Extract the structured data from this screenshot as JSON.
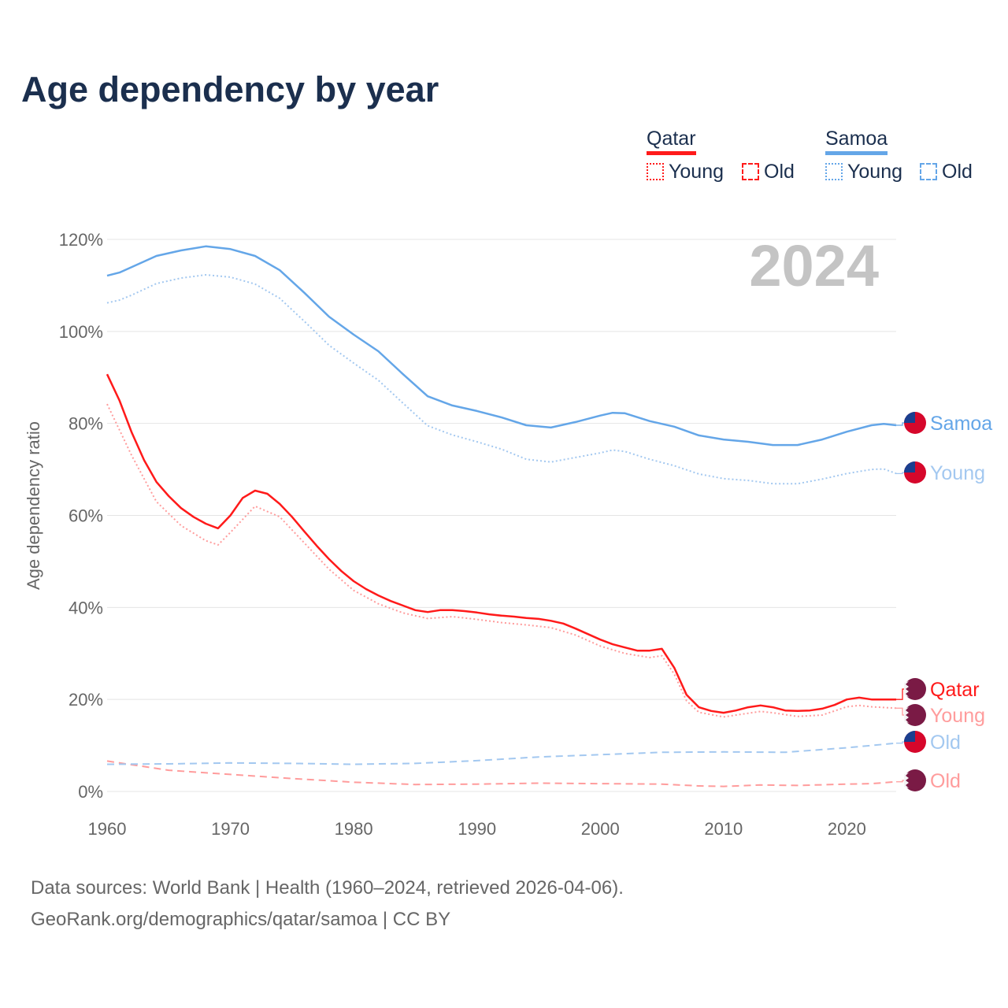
{
  "chart_data": {
    "type": "line",
    "title": "Age dependency by year",
    "ylabel": "Age dependency ratio",
    "xlabel": "",
    "year_watermark": "2024",
    "xlim": [
      1960,
      2024
    ],
    "ylim": [
      0,
      120
    ],
    "xticks": [
      "1960",
      "1970",
      "1980",
      "1990",
      "2000",
      "2010",
      "2020"
    ],
    "yticks": [
      "0%",
      "20%",
      "40%",
      "60%",
      "80%",
      "100%",
      "120%"
    ],
    "grid": true,
    "legend": {
      "groups": [
        {
          "name": "Qatar",
          "items": [
            "Young",
            "Old"
          ]
        },
        {
          "name": "Samoa",
          "items": [
            "Young",
            "Old"
          ]
        }
      ],
      "placement": "top-right"
    },
    "series": [
      {
        "name": "Qatar",
        "label": "Qatar",
        "color": "#ff1a1a",
        "style": "solid",
        "flag": "qatar",
        "x": [
          1960,
          1961,
          1962,
          1963,
          1964,
          1965,
          1966,
          1967,
          1968,
          1969,
          1970,
          1971,
          1972,
          1973,
          1974,
          1975,
          1976,
          1977,
          1978,
          1979,
          1980,
          1981,
          1982,
          1983,
          1984,
          1985,
          1986,
          1987,
          1988,
          1989,
          1990,
          1991,
          1992,
          1993,
          1994,
          1995,
          1996,
          1997,
          1998,
          1999,
          2000,
          2001,
          2002,
          2003,
          2004,
          2005,
          2006,
          2007,
          2008,
          2009,
          2010,
          2011,
          2012,
          2013,
          2014,
          2015,
          2016,
          2017,
          2018,
          2019,
          2020,
          2021,
          2022,
          2023,
          2024
        ],
        "y": [
          90.7,
          85.0,
          78.0,
          72.0,
          67.3,
          64.2,
          61.6,
          59.7,
          58.2,
          57.2,
          60.0,
          63.8,
          65.4,
          64.7,
          62.5,
          59.7,
          56.5,
          53.4,
          50.5,
          47.9,
          45.7,
          44.0,
          42.6,
          41.4,
          40.4,
          39.4,
          39.0,
          39.4,
          39.4,
          39.2,
          38.9,
          38.5,
          38.2,
          38.0,
          37.7,
          37.5,
          37.1,
          36.5,
          35.4,
          34.2,
          33.0,
          32.0,
          31.3,
          30.6,
          30.6,
          31.0,
          26.9,
          21.0,
          18.3,
          17.5,
          17.1,
          17.6,
          18.3,
          18.7,
          18.3,
          17.6,
          17.5,
          17.6,
          18.0,
          18.8,
          20.0,
          20.4,
          20.0,
          20.0,
          20.0
        ]
      },
      {
        "name": "Qatar Young",
        "label": "Young",
        "color": "#ff9c9c",
        "style": "dotted",
        "flag": "qatar",
        "x": [
          1960,
          1962,
          1964,
          1966,
          1968,
          1969,
          1970,
          1972,
          1974,
          1976,
          1978,
          1980,
          1982,
          1984,
          1986,
          1988,
          1990,
          1992,
          1994,
          1996,
          1998,
          2000,
          2002,
          2004,
          2005,
          2006,
          2007,
          2008,
          2010,
          2012,
          2013,
          2014,
          2016,
          2018,
          2020,
          2021,
          2022,
          2024
        ],
        "y": [
          84.2,
          73.0,
          63.0,
          57.8,
          54.5,
          53.6,
          56.3,
          62.0,
          59.7,
          54.0,
          48.3,
          43.7,
          40.8,
          38.8,
          37.6,
          38.0,
          37.4,
          36.7,
          36.2,
          35.6,
          34.0,
          31.6,
          30.0,
          29.1,
          29.5,
          25.5,
          19.7,
          17.2,
          16.2,
          17.0,
          17.4,
          17.1,
          16.3,
          16.6,
          18.4,
          18.7,
          18.4,
          18.1
        ]
      },
      {
        "name": "Qatar Old",
        "label": "Old",
        "color": "#ff9c9c",
        "style": "dashed",
        "flag": "qatar",
        "x": [
          1960,
          1965,
          1970,
          1975,
          1980,
          1985,
          1990,
          1995,
          2000,
          2005,
          2008,
          2010,
          2013,
          2016,
          2020,
          2022,
          2024
        ],
        "y": [
          6.6,
          4.6,
          3.7,
          2.8,
          2.0,
          1.5,
          1.6,
          1.8,
          1.7,
          1.6,
          1.2,
          1.1,
          1.4,
          1.3,
          1.6,
          1.7,
          2.1
        ]
      },
      {
        "name": "Samoa",
        "label": "Samoa",
        "color": "#64a6e8",
        "style": "solid",
        "flag": "samoa",
        "x": [
          1960,
          1961,
          1962,
          1964,
          1966,
          1968,
          1970,
          1972,
          1974,
          1976,
          1978,
          1980,
          1982,
          1984,
          1986,
          1988,
          1990,
          1992,
          1994,
          1996,
          1998,
          2000,
          2001,
          2002,
          2004,
          2006,
          2008,
          2010,
          2012,
          2014,
          2016,
          2018,
          2020,
          2022,
          2023,
          2024
        ],
        "y": [
          112.1,
          112.8,
          114.0,
          116.4,
          117.6,
          118.5,
          117.9,
          116.4,
          113.3,
          108.4,
          103.2,
          99.3,
          95.7,
          90.7,
          85.9,
          83.9,
          82.7,
          81.3,
          79.6,
          79.1,
          80.3,
          81.7,
          82.3,
          82.2,
          80.5,
          79.3,
          77.4,
          76.5,
          76.0,
          75.3,
          75.3,
          76.5,
          78.2,
          79.6,
          79.9,
          79.6
        ]
      },
      {
        "name": "Samoa Young",
        "label": "Young",
        "color": "#a3c8f0",
        "style": "dotted",
        "flag": "samoa",
        "x": [
          1960,
          1961,
          1962,
          1964,
          1966,
          1968,
          1970,
          1972,
          1974,
          1976,
          1978,
          1980,
          1982,
          1984,
          1986,
          1988,
          1990,
          1992,
          1994,
          1996,
          1998,
          2000,
          2001,
          2002,
          2004,
          2006,
          2008,
          2010,
          2012,
          2014,
          2016,
          2018,
          2020,
          2022,
          2023,
          2024
        ],
        "y": [
          106.2,
          106.8,
          107.9,
          110.4,
          111.6,
          112.3,
          111.8,
          110.3,
          107.2,
          102.2,
          97.0,
          93.1,
          89.4,
          84.4,
          79.5,
          77.5,
          76.0,
          74.4,
          72.2,
          71.6,
          72.6,
          73.6,
          74.2,
          73.9,
          72.2,
          70.8,
          69.0,
          68.0,
          67.6,
          66.9,
          66.9,
          67.9,
          69.1,
          70.0,
          70.1,
          69.1
        ]
      },
      {
        "name": "Samoa Old",
        "label": "Old",
        "color": "#a3c8f0",
        "style": "dashed",
        "flag": "samoa",
        "x": [
          1960,
          1965,
          1970,
          1975,
          1980,
          1985,
          1990,
          1995,
          2000,
          2005,
          2010,
          2015,
          2020,
          2024
        ],
        "y": [
          5.9,
          6.0,
          6.2,
          6.1,
          5.9,
          6.1,
          6.7,
          7.5,
          8.0,
          8.5,
          8.6,
          8.5,
          9.5,
          10.5
        ]
      }
    ]
  },
  "footer": {
    "line1": "Data sources: World Bank | Health (1960–2024, retrieved 2026-04-06).",
    "line2": "GeoRank.org/demographics/qatar/samoa | CC BY"
  }
}
